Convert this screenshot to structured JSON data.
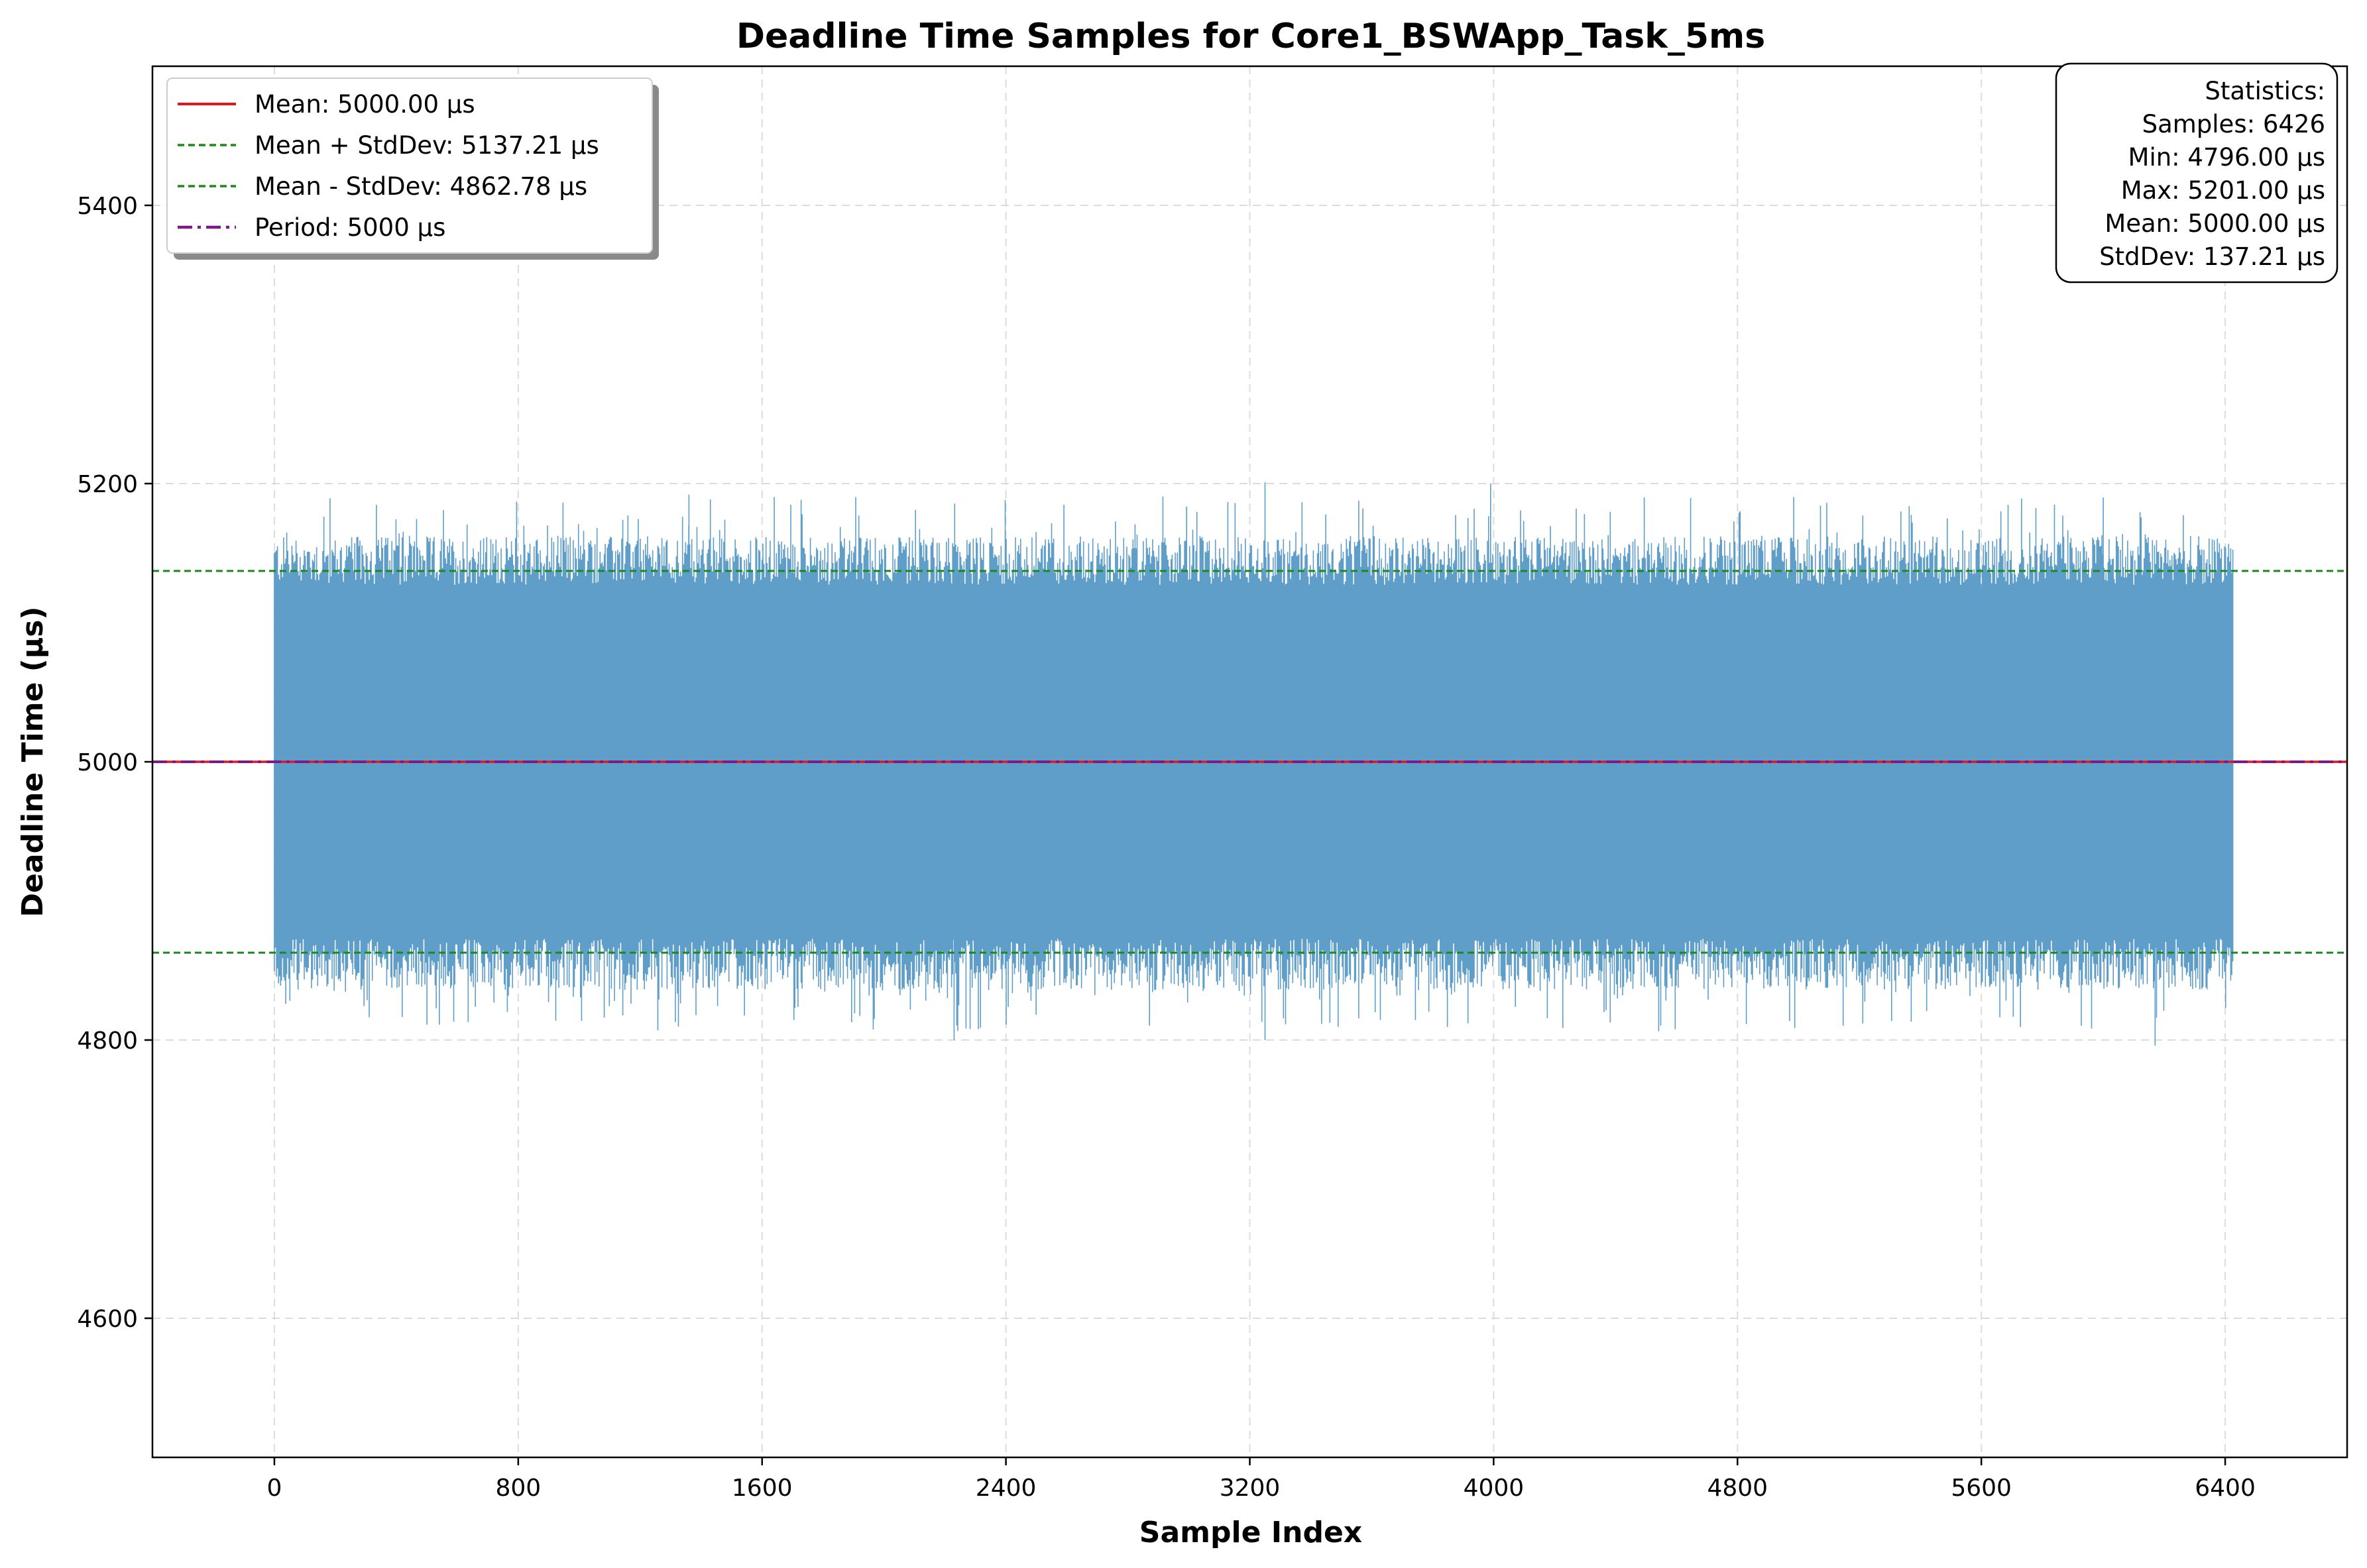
{
  "chart_data": {
    "type": "line",
    "title": "Deadline Time Samples for Core1_BSWApp_Task_5ms",
    "xlabel": "Sample Index",
    "ylabel": "Deadline Time (µs)",
    "xlim": [
      -400,
      6800
    ],
    "ylim": [
      4500,
      5500
    ],
    "xticks": [
      0,
      800,
      1600,
      2400,
      3200,
      4000,
      4800,
      5600,
      6400
    ],
    "yticks": [
      4600,
      4800,
      5000,
      5200,
      5400
    ],
    "grid": true,
    "series": [
      {
        "name": "Deadline Time Samples",
        "color": "#5f9ec9",
        "x_range": [
          0,
          6425
        ],
        "y_range": [
          4796,
          5201
        ],
        "core_band": [
          4862.78,
          5137.21
        ]
      }
    ],
    "reference_lines": [
      {
        "label": "Mean: 5000.00 µs",
        "value": 5000.0,
        "color": "#e8141a",
        "style": "solid"
      },
      {
        "label": "Mean + StdDev: 5137.21 µs",
        "value": 5137.21,
        "color": "#1a8a1a",
        "style": "dashed"
      },
      {
        "label": "Mean - StdDev: 4862.78 µs",
        "value": 4862.78,
        "color": "#1a8a1a",
        "style": "dashed"
      },
      {
        "label": "Period: 5000 µs",
        "value": 5000,
        "color": "#7a1c86",
        "style": "dashdot"
      }
    ],
    "legend_position": "top-left",
    "stats_box": {
      "position": "top-right",
      "lines": [
        "Statistics:",
        "Samples: 6426",
        "Min: 4796.00 µs",
        "Max: 5201.00 µs",
        "Mean: 5000.00 µs",
        "StdDev: 137.21 µs"
      ]
    }
  }
}
